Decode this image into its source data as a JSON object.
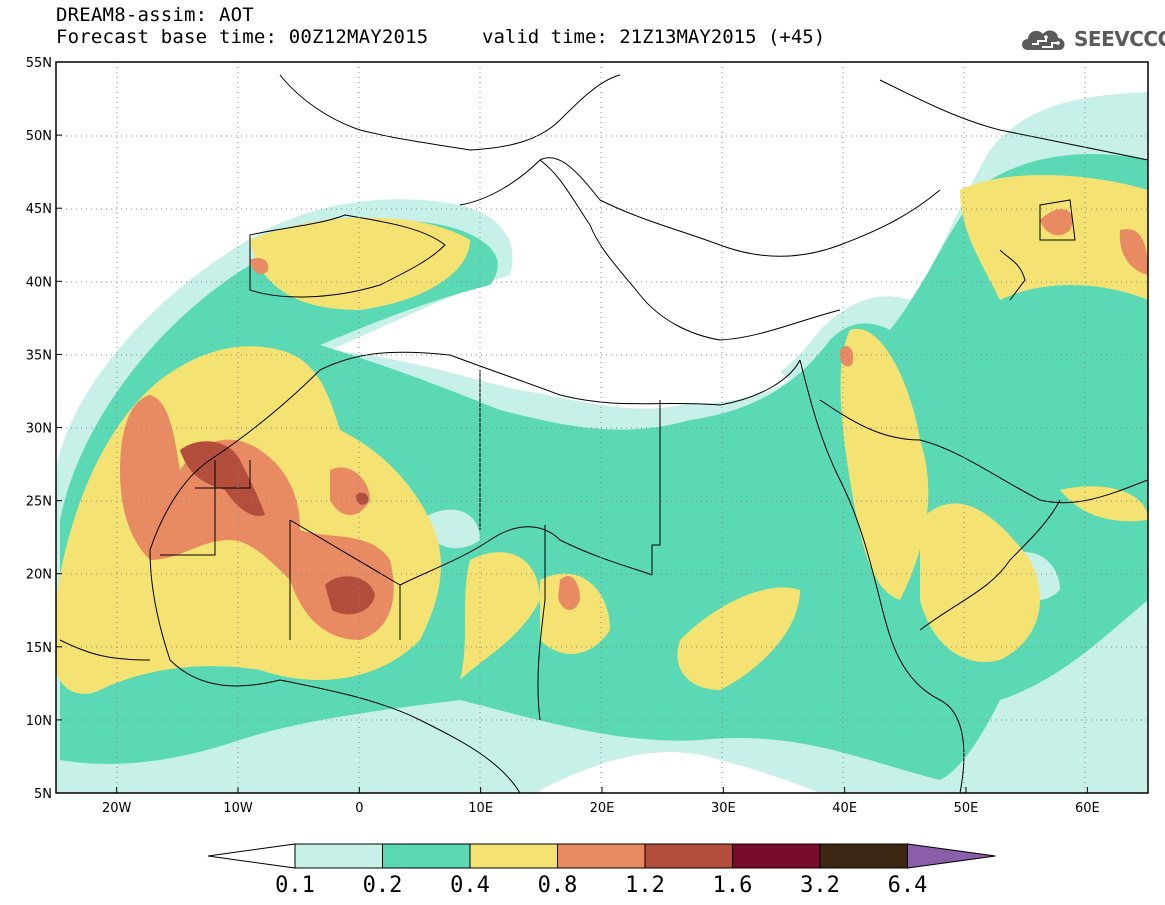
{
  "title": {
    "line1": "DREAM8-assim: AOT",
    "line2": "Forecast base time: 00Z12MAY2015",
    "valid": "valid time: 21Z13MAY2015 (+45)"
  },
  "logo": {
    "text": "SEEVCCC",
    "icon": "cloud-logo-icon",
    "color": "#5a5a5a"
  },
  "map": {
    "lon_range": [
      -25,
      65
    ],
    "lat_range": [
      5,
      55
    ],
    "lat_ticks": [
      "5N",
      "10N",
      "15N",
      "20N",
      "25N",
      "30N",
      "35N",
      "40N",
      "45N",
      "50N",
      "55N"
    ],
    "lon_ticks": [
      "20W",
      "10W",
      "0",
      "10E",
      "20E",
      "30E",
      "40E",
      "50E",
      "60E"
    ]
  },
  "colorbar": {
    "labels": [
      "0.1",
      "0.2",
      "0.4",
      "0.8",
      "1.2",
      "1.6",
      "3.2",
      "6.4"
    ],
    "colors": [
      "#ffffff",
      "#c6f0e8",
      "#5ad9b4",
      "#f4e373",
      "#e88b62",
      "#b34d3c",
      "#7a0a2a",
      "#3d2514",
      "#8a5ea8"
    ]
  }
}
